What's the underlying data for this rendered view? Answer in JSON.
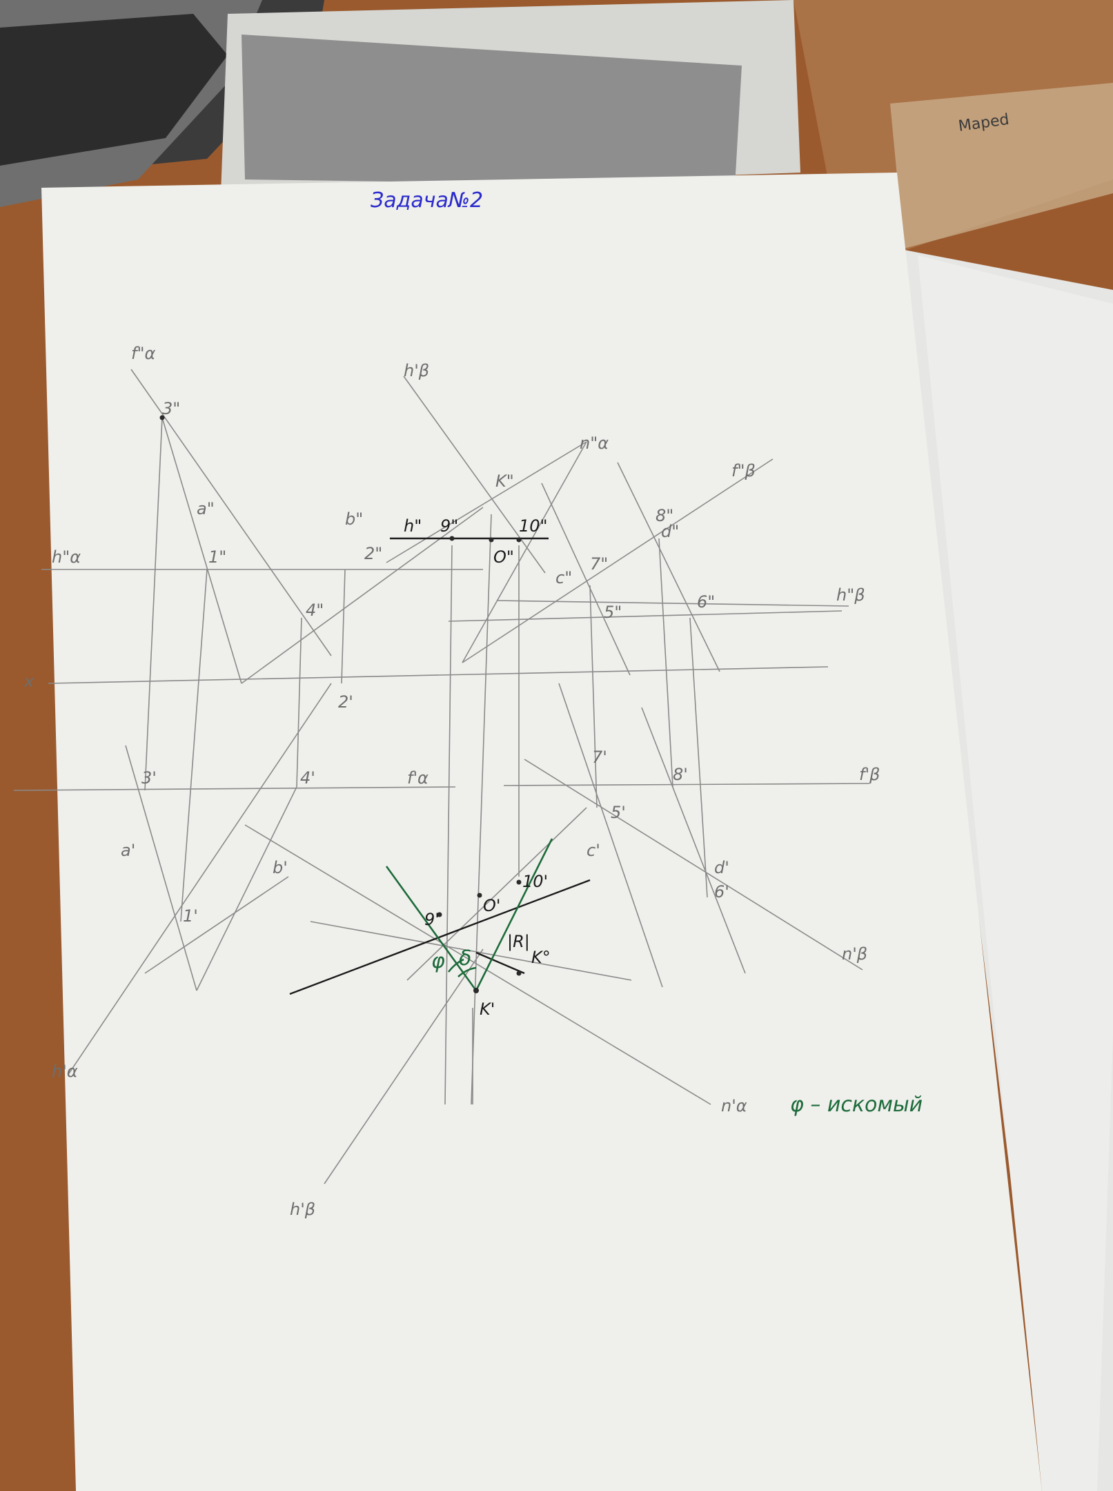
{
  "sheet_title": "Задача№2",
  "answer_note": "φ – искомый",
  "ruler_brand": "Maped",
  "labels": {
    "f2a": "f\"α",
    "h2b_top": "h'β",
    "n2a": "n\"α",
    "f2b": "f\"β",
    "h2a": "h\"α",
    "h2b": "h\"β",
    "x_axis": "x",
    "f1a": "f'α",
    "f1b": "f'β",
    "n1b": "n'β",
    "h1a": "h'α",
    "n1a": "n'α",
    "h1b": "h'β",
    "p3pp": "3\"",
    "p1pp": "1\"",
    "p2pp": "2\"",
    "p4pp": "4\"",
    "a2": "a\"",
    "b2": "b\"",
    "p9pp": "9\"",
    "p10pp": "10\"",
    "hpp": "h\"",
    "Opp": "O\"",
    "Kpp": "K\"",
    "c2": "c\"",
    "d2": "d\"",
    "p5pp": "5\"",
    "p6pp": "6\"",
    "p7pp": "7\"",
    "p8pp": "8\"",
    "p3p": "3'",
    "p4p": "4'",
    "p2p": "2'",
    "p1p": "1'",
    "a1": "a'",
    "b1": "b'",
    "p7p": "7'",
    "p8p": "8'",
    "p5p": "5'",
    "c1": "c'",
    "d1": "d'",
    "p6p": "6'",
    "p9p": "9'",
    "Op": "O'",
    "p10p": "10'",
    "R": "|R|",
    "K0": "K°",
    "Kp": "K'",
    "phi": "φ",
    "delta": "δ"
  },
  "colors": {
    "paper": "#efefec",
    "desk": "#9a5a2e",
    "pencil": "#8a8a8a",
    "ink": "#1a1a1a",
    "green": "#1d6b3a",
    "title_blue": "#2a2acc"
  }
}
